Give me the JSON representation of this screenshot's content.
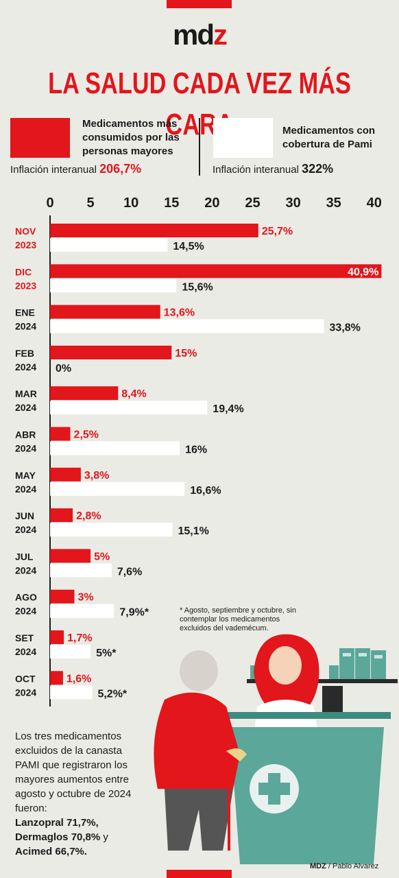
{
  "header": {
    "logo_main": "md",
    "logo_accent": "z",
    "title": "LA SALUD CADA VEZ MÁS CARA"
  },
  "legend": {
    "left_label": "Medicamentos más consumidos por las personas mayores",
    "left_infl_label": "Inflación interanual",
    "left_infl_value": "206,7%",
    "right_label": "Medicamentos con cobertura de Pami",
    "right_infl_label": "Inflación interanual",
    "right_infl_value": "322%"
  },
  "colors": {
    "accent": "#e2161b",
    "bar_white": "#ffffff",
    "background": "#ebebe6"
  },
  "chart_data": {
    "type": "bar",
    "orientation": "horizontal",
    "xlim": [
      0,
      40
    ],
    "x_ticks": [
      "0",
      "5",
      "10",
      "15",
      "20",
      "25",
      "30",
      "35",
      "40"
    ],
    "categories": [
      {
        "month": "NOV",
        "year": "2023",
        "highlight": true
      },
      {
        "month": "DIC",
        "year": "2023",
        "highlight": true
      },
      {
        "month": "ENE",
        "year": "2024",
        "highlight": false
      },
      {
        "month": "FEB",
        "year": "2024",
        "highlight": false
      },
      {
        "month": "MAR",
        "year": "2024",
        "highlight": false
      },
      {
        "month": "ABR",
        "year": "2024",
        "highlight": false
      },
      {
        "month": "MAY",
        "year": "2024",
        "highlight": false
      },
      {
        "month": "JUN",
        "year": "2024",
        "highlight": false
      },
      {
        "month": "JUL",
        "year": "2024",
        "highlight": false
      },
      {
        "month": "AGO",
        "year": "2024",
        "highlight": false
      },
      {
        "month": "SET",
        "year": "2024",
        "highlight": false
      },
      {
        "month": "OCT",
        "year": "2024",
        "highlight": false
      }
    ],
    "series": [
      {
        "color": "#e2161b",
        "values": [
          25.7,
          40.9,
          13.6,
          15,
          8.4,
          2.5,
          3.8,
          2.8,
          5,
          3,
          1.7,
          1.6
        ],
        "labels": [
          "25,7%",
          "40,9%",
          "13,6%",
          "15%",
          "8,4%",
          "2,5%",
          "3,8%",
          "2,8%",
          "5%",
          "3%",
          "1,7%",
          "1,6%"
        ]
      },
      {
        "color": "#ffffff",
        "values": [
          14.5,
          15.6,
          33.8,
          0,
          19.4,
          16,
          16.6,
          15.1,
          7.6,
          7.9,
          5,
          5.2
        ],
        "labels": [
          "14,5%",
          "15,6%",
          "33,8%",
          "0%",
          "19,4%",
          "16%",
          "16,6%",
          "15,1%",
          "7,6%",
          "7,9%*",
          "5%*",
          "5,2%*"
        ]
      }
    ]
  },
  "footnote": "* Agosto, septiembre y octubre, sin contemplar los medicamentos excluidos del vademécum.",
  "bottom": {
    "intro": "Los tres medicamentos excluidos de la canasta PAMI que registraron los mayores aumentos entre agosto y octubre de 2024 fueron:",
    "item1": "Lanzopral 71,7%,",
    "item2": "Dermaglos 70,8%",
    "item2_tail": " y",
    "item3": "Acimed 66,7%."
  },
  "credit": {
    "brand": "MDZ",
    "author": " / Pablo Alvarez"
  }
}
